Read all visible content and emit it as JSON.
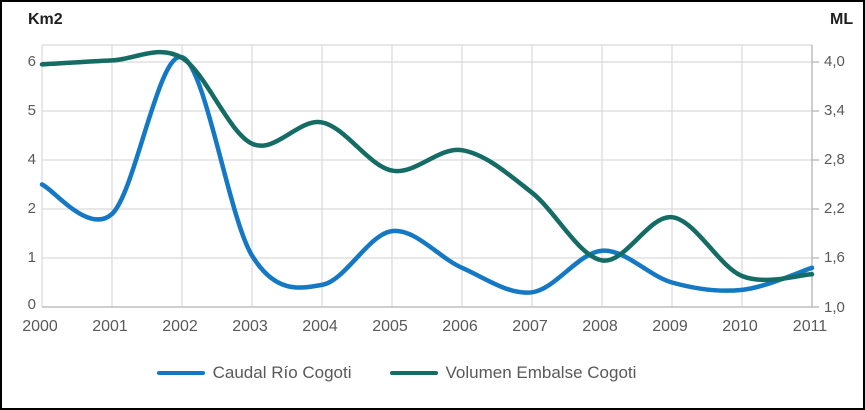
{
  "chart_data": {
    "type": "line",
    "title": "",
    "x": [
      2000,
      2001,
      2002,
      2003,
      2004,
      2005,
      2006,
      2007,
      2008,
      2009,
      2010,
      2011
    ],
    "x_ticks": [
      "2000",
      "2001",
      "2002",
      "2003",
      "2004",
      "2005",
      "2006",
      "2007",
      "2008",
      "2009",
      "2010",
      "2011"
    ],
    "left_axis": {
      "title": "Km2",
      "ticks": [
        "6",
        "5",
        "4",
        "2",
        "1",
        "0"
      ]
    },
    "right_axis": {
      "title": "ML",
      "ticks": [
        "4,0",
        "3,4",
        "2,8",
        "2,2",
        "1,6",
        "1,0"
      ],
      "min": 1.0,
      "max": 4.0,
      "step": 0.6
    },
    "series": [
      {
        "name": "Caudal Río Cogoti",
        "axis": "left",
        "color": "#1478C4",
        "values": [
          3.0,
          1.9,
          6.1,
          1.05,
          0.45,
          1.55,
          0.8,
          0.3,
          1.15,
          0.5,
          0.35,
          0.8
        ]
      },
      {
        "name": "Volumen Embalse Cogoti",
        "axis": "right",
        "color": "#156C64",
        "values": [
          3.97,
          4.02,
          4.05,
          3.0,
          3.26,
          2.67,
          2.92,
          2.4,
          1.57,
          2.1,
          1.38,
          1.4
        ]
      }
    ],
    "legend_position": "bottom",
    "grid": true
  }
}
